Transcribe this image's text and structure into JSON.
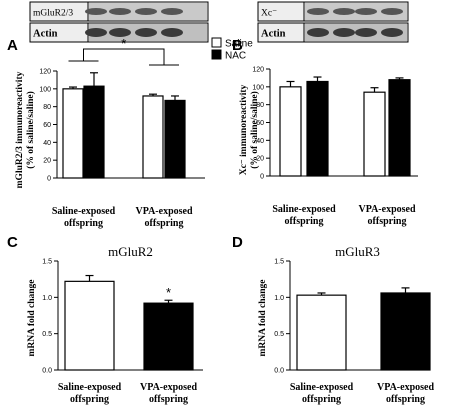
{
  "legend": {
    "entries": [
      {
        "label": "Saline",
        "color": "#ffffff"
      },
      {
        "label": "NAC",
        "color": "#000000"
      }
    ]
  },
  "blots": {
    "A": {
      "top": "mGluR2/3",
      "bottom": "Actin"
    },
    "B": {
      "top": "Xc⁻",
      "bottom": "Actin"
    }
  },
  "chart_data": [
    {
      "panel": "A",
      "type": "bar",
      "title": "",
      "ylabel": "mGluR2/3 immunoreactivity (% of saline/saline)",
      "ylabel_lines": [
        "mGluR2/3 immunoreactivity",
        "(% of saline/saline)"
      ],
      "ylim": [
        0,
        120
      ],
      "yticks": [
        "0",
        "20",
        "40",
        "60",
        "80",
        "100",
        "120"
      ],
      "groups": [
        [
          "Saline-exposed",
          "offspring"
        ],
        [
          "VPA-exposed",
          "offspring"
        ]
      ],
      "series": [
        {
          "name": "Saline",
          "values": [
            100,
            92
          ],
          "errors": [
            2,
            2
          ]
        },
        {
          "name": "NAC",
          "values": [
            103,
            87
          ],
          "errors": [
            15,
            5
          ]
        }
      ],
      "significance": "*"
    },
    {
      "panel": "B",
      "type": "bar",
      "title": "",
      "ylabel": "Xc⁻ immunoreactivity (% of saline/saline)",
      "ylabel_lines": [
        "Xc⁻ immunoreactivity",
        "(% of saline/saline)"
      ],
      "ylim": [
        0,
        120
      ],
      "yticks": [
        "0",
        "20",
        "40",
        "60",
        "80",
        "100",
        "120"
      ],
      "groups": [
        [
          "Saline-exposed",
          "offspring"
        ],
        [
          "VPA-exposed",
          "offspring"
        ]
      ],
      "series": [
        {
          "name": "Saline",
          "values": [
            100,
            94
          ],
          "errors": [
            6,
            5
          ]
        },
        {
          "name": "NAC",
          "values": [
            106,
            108
          ],
          "errors": [
            5,
            2
          ]
        }
      ]
    },
    {
      "panel": "C",
      "type": "bar",
      "title": "mGluR2",
      "ylabel": "mRNA fold change",
      "ylabel_lines": [
        "mRNA fold change"
      ],
      "ylim": [
        0,
        1.5
      ],
      "yticks": [
        "0.0",
        "0.5",
        "1.0",
        "1.5"
      ],
      "groups": [
        [
          "Saline-exposed",
          "offspring"
        ],
        [
          "VPA-exposed",
          "offspring"
        ]
      ],
      "series": [
        {
          "name": "",
          "values": [
            1.22,
            0.92
          ],
          "errors": [
            0.08,
            0.04
          ]
        }
      ],
      "significance": "*"
    },
    {
      "panel": "D",
      "type": "bar",
      "title": "mGluR3",
      "ylabel": "mRNA fold change",
      "ylabel_lines": [
        "mRNA fold change"
      ],
      "ylim": [
        0,
        1.5
      ],
      "yticks": [
        "0.0",
        "0.5",
        "1.0",
        "1.5"
      ],
      "groups": [
        [
          "Saline-exposed",
          "offspring"
        ],
        [
          "VPA-exposed",
          "offspring"
        ]
      ],
      "series": [
        {
          "name": "",
          "values": [
            1.03,
            1.06
          ],
          "errors": [
            0.03,
            0.07
          ]
        }
      ]
    }
  ]
}
